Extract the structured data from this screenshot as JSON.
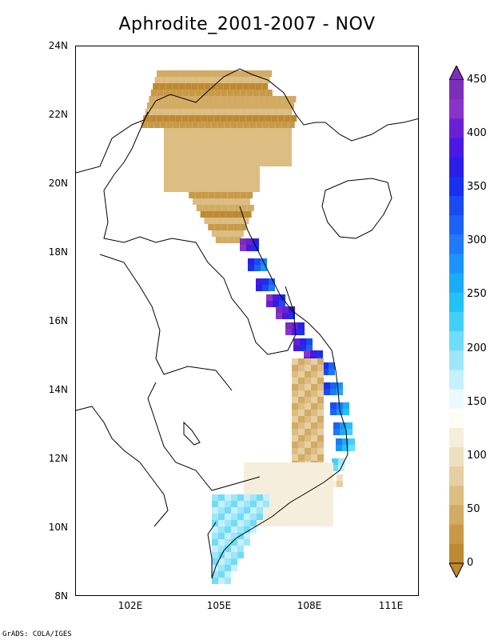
{
  "title": "Aphrodite_2001-2007 - NOV",
  "credit": "GrADS: COLA/IGES",
  "lat_labels": [
    "24N",
    "22N",
    "20N",
    "18N",
    "16N",
    "14N",
    "12N",
    "10N",
    "8N"
  ],
  "lon_labels": [
    "102E",
    "105E",
    "108E",
    "111E"
  ],
  "colorbar": {
    "labels": [
      "450",
      "400",
      "350",
      "300",
      "250",
      "200",
      "150",
      "100",
      "50",
      "0"
    ],
    "colors": [
      "#7b2fb8",
      "#8a33c9",
      "#6a1fd6",
      "#4a18e2",
      "#2a1ee8",
      "#1830f0",
      "#1a4af2",
      "#1c62f4",
      "#1e7af6",
      "#1a94f8",
      "#1aacf8",
      "#22c2f6",
      "#44d0f6",
      "#70dcf8",
      "#9ee6fa",
      "#c6f0fb",
      "#ecfaff",
      "#fffdf4",
      "#f6eedc",
      "#eedfc0",
      "#e6cfa2",
      "#dcbd82",
      "#d2ab64",
      "#c89a48",
      "#bd8a32"
    ]
  },
  "colors": {
    "land_outline": "#000000",
    "dry": "#c89a48",
    "wet": "#7b2fb8"
  }
}
